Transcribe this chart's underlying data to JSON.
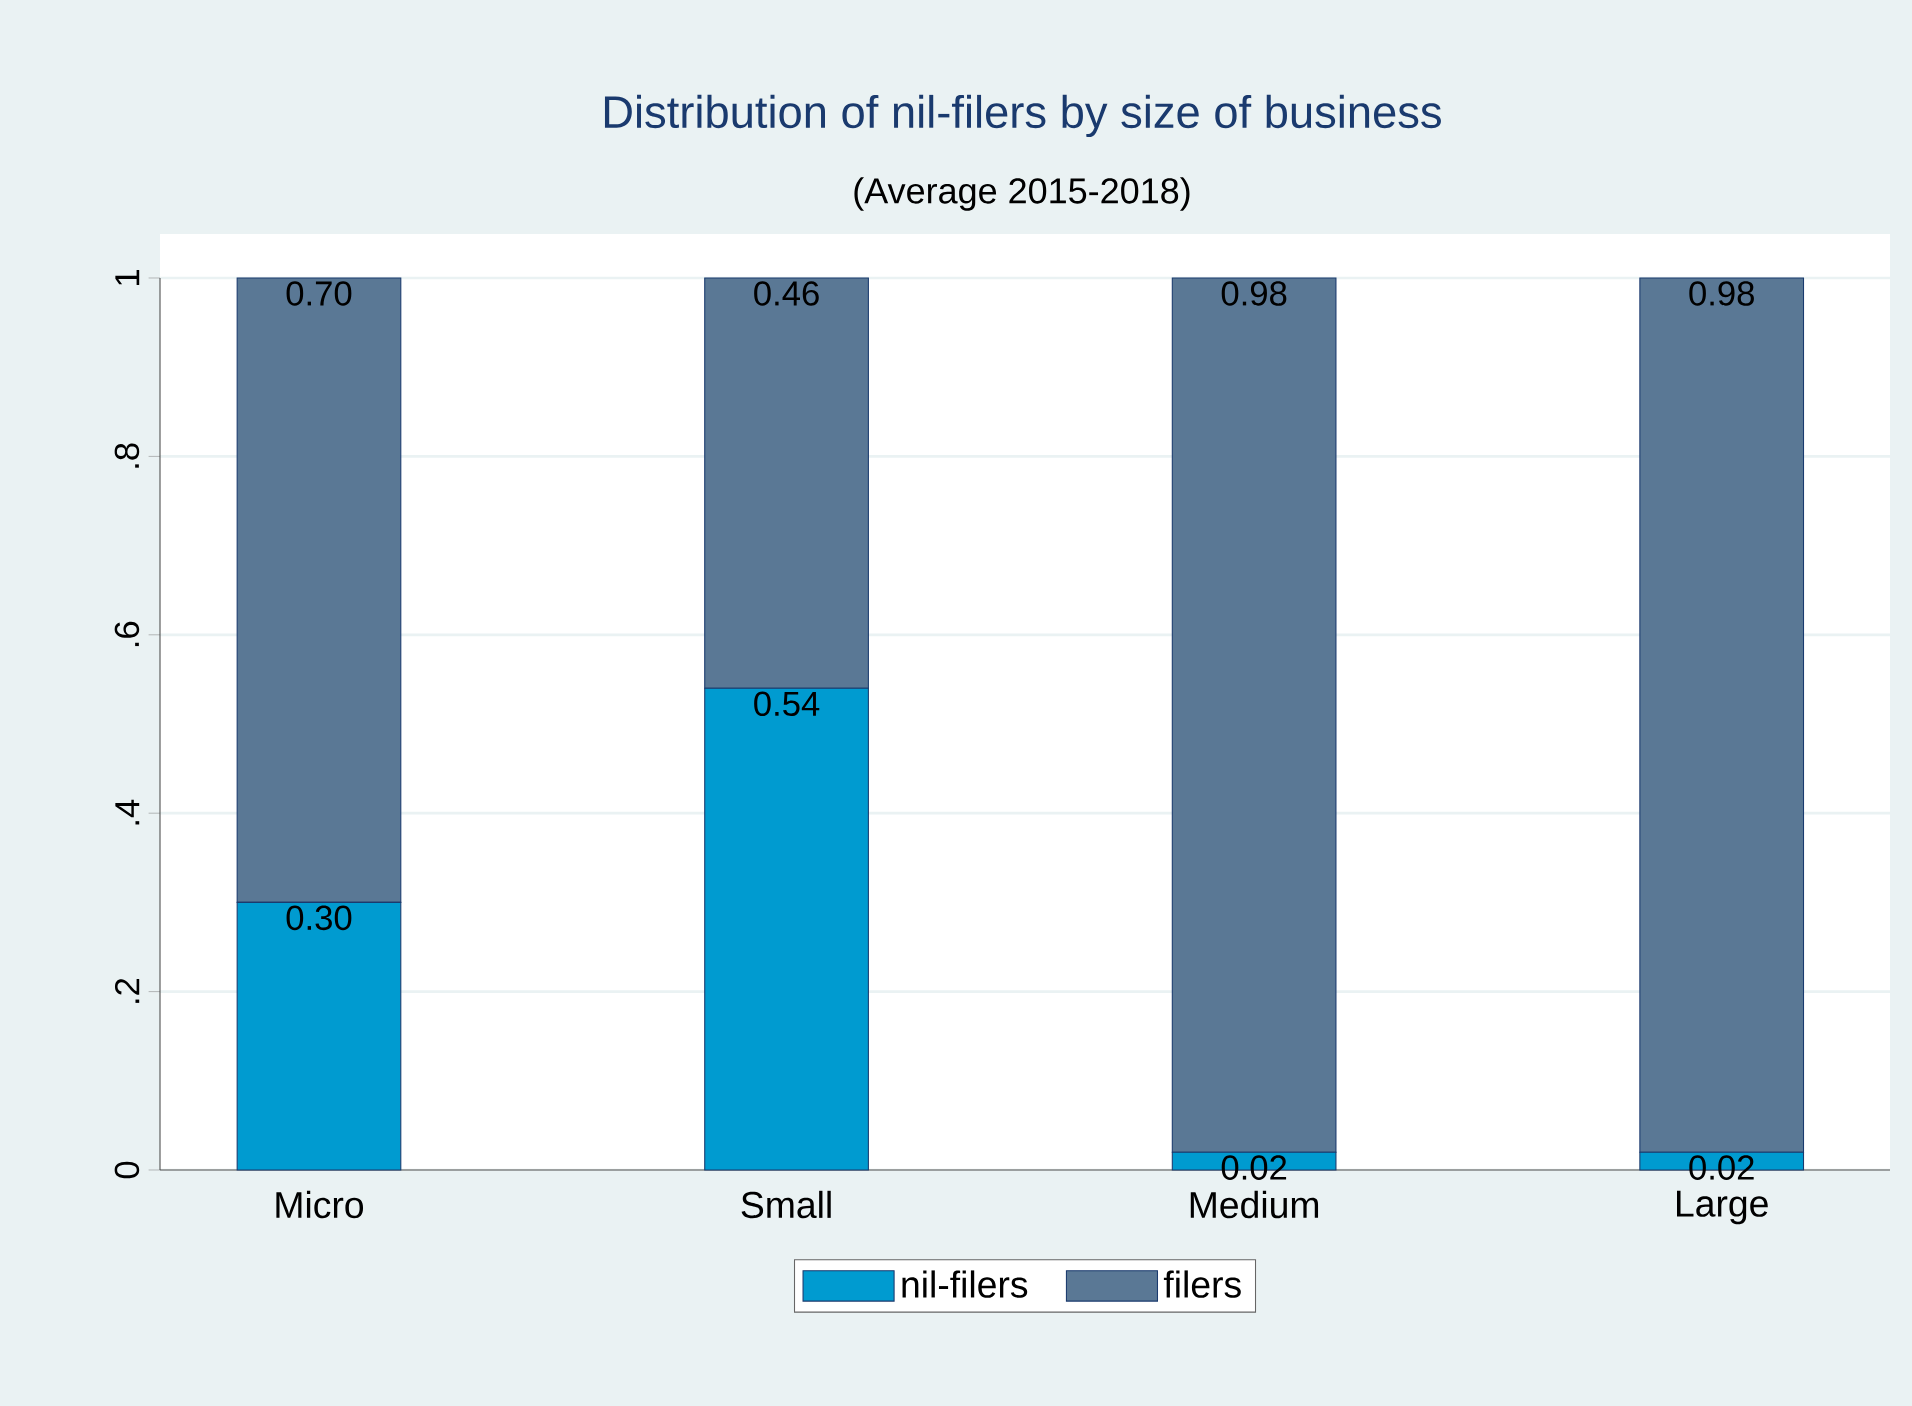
{
  "chart_data": {
    "type": "bar",
    "title": "Distribution of nil-filers by size of business",
    "subtitle": "(Average 2015-2018)",
    "categories": [
      "Micro",
      "Small",
      "Medium",
      "Large"
    ],
    "series": [
      {
        "name": "nil-filers",
        "color": "#009bd0",
        "values": [
          0.3,
          0.54,
          0.02,
          0.02
        ],
        "value_labels": [
          "0.30",
          "0.54",
          "0.02",
          "0.02"
        ]
      },
      {
        "name": "filers",
        "color": "#5a7895",
        "values": [
          0.7,
          0.46,
          0.98,
          0.98
        ],
        "value_labels": [
          "0.70",
          "0.46",
          "0.98",
          "0.98"
        ]
      }
    ],
    "stacked": true,
    "ylim": [
      0,
      1
    ],
    "yticks": [
      0,
      {
        "value": 0.2,
        "label": ".2"
      },
      {
        "value": 0.4,
        "label": ".4"
      },
      {
        "value": 0.6,
        "label": ".6"
      },
      {
        "value": 0.8,
        "label": ".8"
      },
      1
    ],
    "grid": "y",
    "legend": "bottom"
  }
}
